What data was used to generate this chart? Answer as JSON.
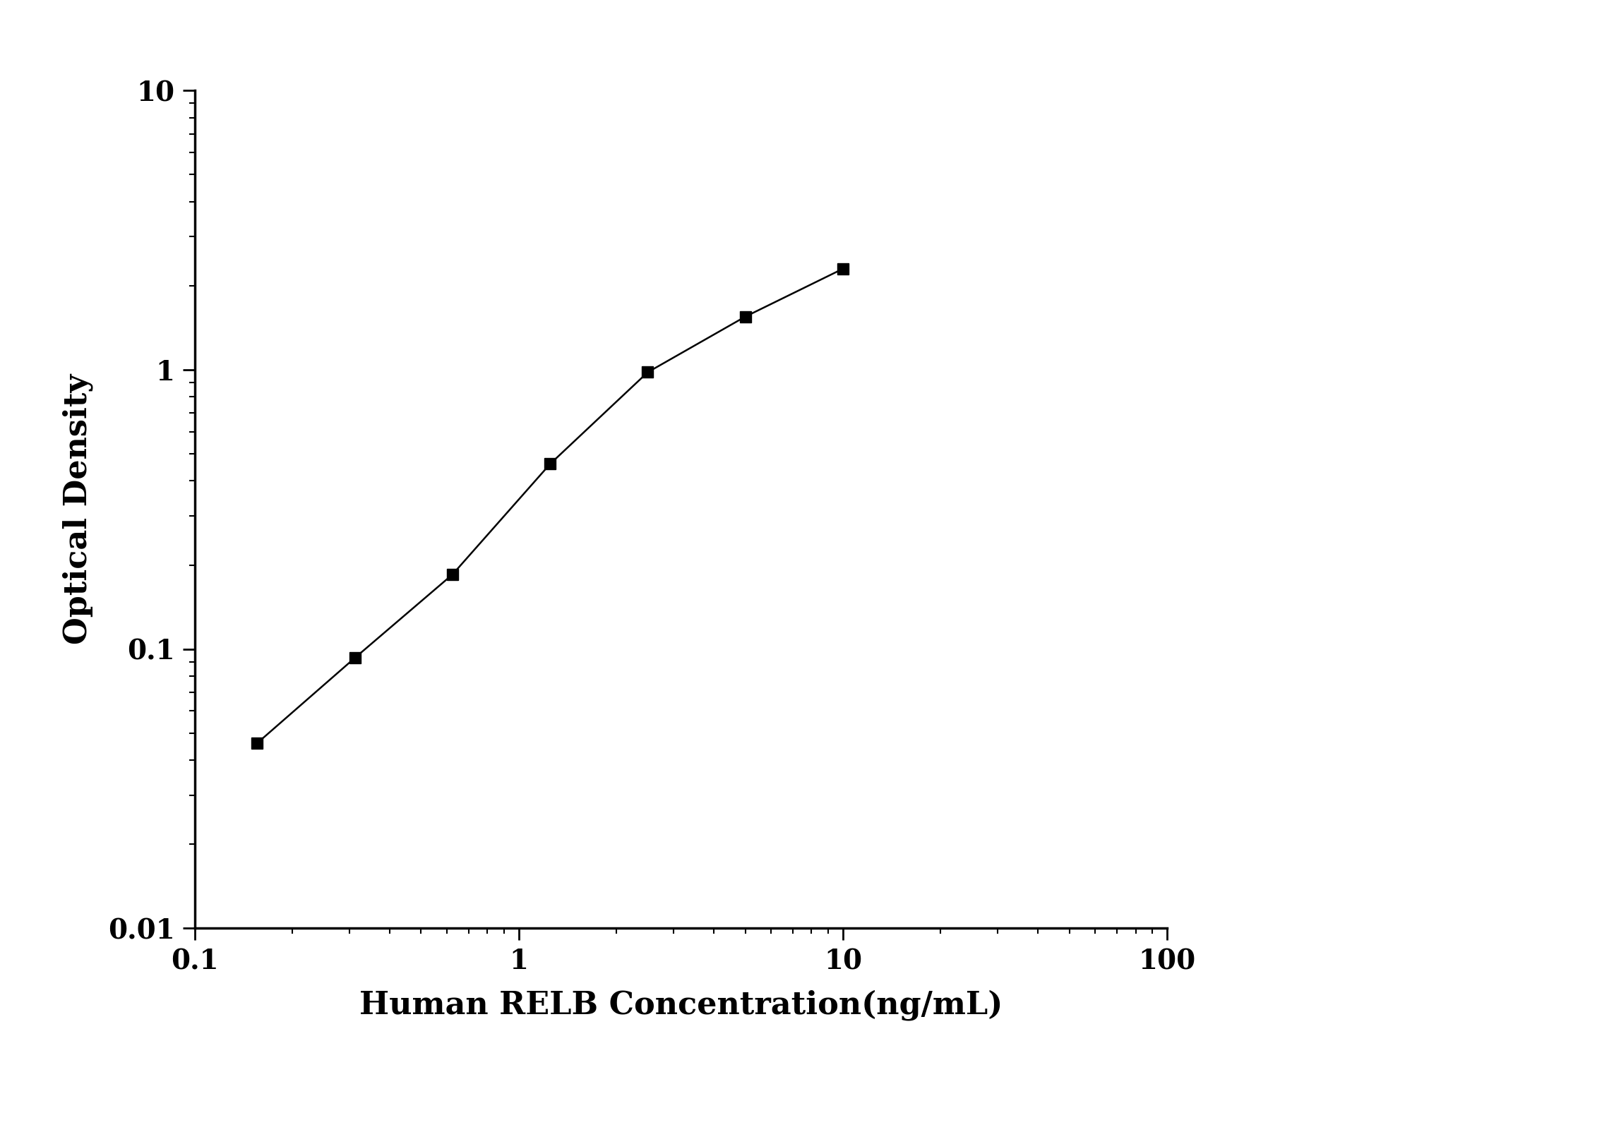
{
  "x": [
    0.156,
    0.3125,
    0.625,
    1.25,
    2.5,
    5.0,
    10.0
  ],
  "y": [
    0.046,
    0.093,
    0.185,
    0.46,
    0.98,
    1.55,
    2.3
  ],
  "xlabel": "Human RELB Concentration(ng/mL)",
  "ylabel": "Optical Density",
  "xlim": [
    0.1,
    100
  ],
  "ylim": [
    0.01,
    10
  ],
  "line_color": "#000000",
  "marker": "s",
  "marker_size": 12,
  "marker_color": "#000000",
  "line_width": 1.8,
  "background_color": "#ffffff",
  "xlabel_fontsize": 32,
  "ylabel_fontsize": 32,
  "tick_fontsize": 28,
  "spine_linewidth": 2.5
}
